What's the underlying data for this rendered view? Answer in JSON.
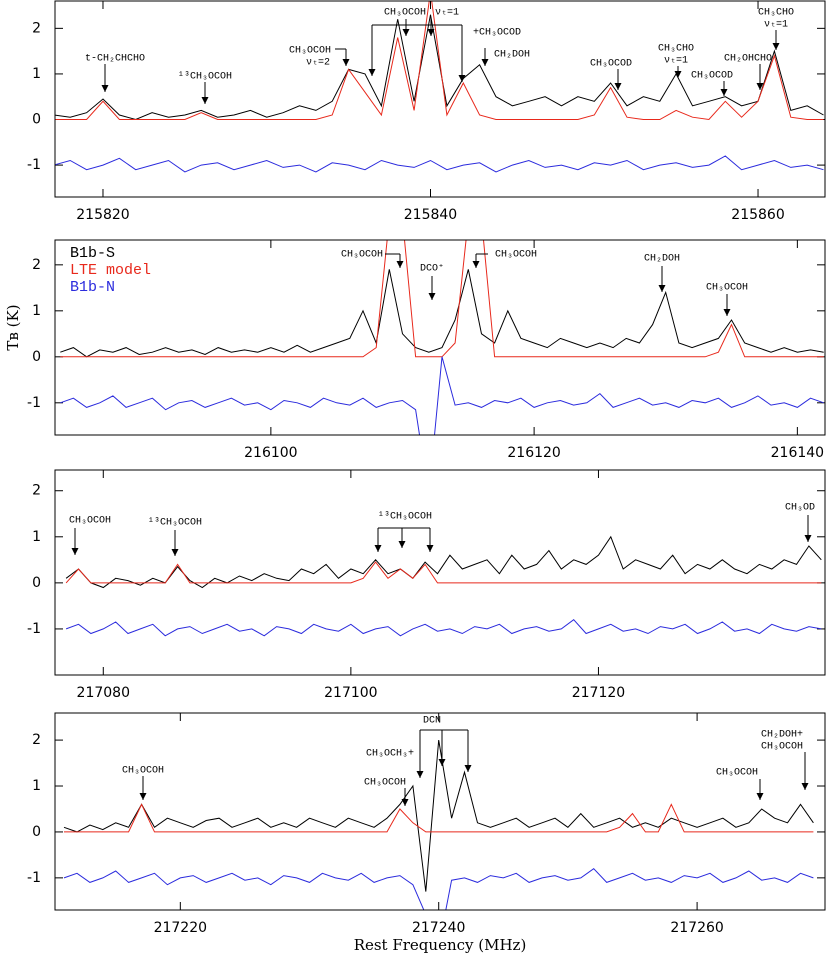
{
  "chart_data": [
    {
      "type": "line",
      "x": [
        215817,
        215818,
        215819,
        215820,
        215821,
        215822,
        215823,
        215824,
        215825,
        215826,
        215827,
        215828,
        215829,
        215830,
        215831,
        215832,
        215833,
        215834,
        215835,
        215836,
        215837,
        215838,
        215839,
        215840,
        215841,
        215842,
        215843,
        215844,
        215845,
        215846,
        215847,
        215848,
        215849,
        215850,
        215851,
        215852,
        215853,
        215854,
        215855,
        215856,
        215857,
        215858,
        215859,
        215860,
        215861,
        215862,
        215863,
        215864
      ],
      "series": [
        {
          "color": "#000000",
          "values": [
            0.1,
            0.05,
            0.15,
            0.45,
            0.1,
            0.0,
            0.15,
            0.05,
            0.1,
            0.2,
            0.05,
            0.1,
            0.2,
            0.05,
            0.15,
            0.3,
            0.2,
            0.4,
            1.1,
            1.0,
            0.3,
            2.2,
            0.4,
            2.3,
            0.3,
            0.9,
            1.2,
            0.5,
            0.3,
            0.4,
            0.5,
            0.3,
            0.5,
            0.4,
            0.8,
            0.3,
            0.5,
            0.4,
            1.0,
            0.3,
            0.4,
            0.5,
            0.3,
            0.4,
            1.5,
            0.2,
            0.3,
            0.1
          ]
        },
        {
          "color": "#e8291c",
          "values": [
            0,
            0,
            0,
            0.4,
            0,
            0,
            0,
            0,
            0,
            0.15,
            0,
            0,
            0,
            0,
            0,
            0,
            0,
            0.1,
            1.1,
            0.6,
            0.1,
            1.8,
            0.2,
            2.8,
            0.1,
            0.8,
            0.1,
            0,
            0,
            0,
            0,
            0,
            0,
            0.1,
            0.7,
            0.05,
            0,
            0,
            0.2,
            0.05,
            0,
            0.4,
            0.05,
            0.4,
            1.4,
            0.05,
            0,
            0
          ]
        },
        {
          "color": "#2b2bdd",
          "values": [
            -1.0,
            -0.9,
            -1.1,
            -1.0,
            -0.85,
            -1.1,
            -1.0,
            -0.9,
            -1.15,
            -1.0,
            -0.95,
            -1.1,
            -1.0,
            -0.9,
            -1.05,
            -1.0,
            -1.15,
            -0.95,
            -1.0,
            -1.1,
            -0.9,
            -1.0,
            -1.05,
            -0.9,
            -1.1,
            -1.0,
            -0.95,
            -1.15,
            -1.0,
            -0.9,
            -1.05,
            -1.0,
            -1.1,
            -0.95,
            -1.0,
            -0.9,
            -1.1,
            -1.0,
            -0.95,
            -1.05,
            -1.0,
            -0.8,
            -1.1,
            -1.0,
            -0.9,
            -1.05,
            -1.0,
            -1.1
          ]
        }
      ],
      "xlim": [
        215817.07,
        215864.09
      ],
      "xticks": [
        215820,
        215840,
        215860
      ],
      "ylim": [
        -1.7,
        2.6
      ],
      "yticks": [
        -1,
        0,
        1,
        2
      ],
      "annotations": [
        "t-CH₂CHCHO",
        "¹³CH₃OCOH",
        "CH₃OCOH",
        "νₜ=2",
        "CH₃OCOH",
        "νₜ=1",
        "+CH₃OCOD",
        "CH₂DOH",
        "CH₃OCOD",
        "CH₃CHO",
        "νₜ=1",
        "CH₂OHCHO",
        "CH₃OCOD",
        "CH₃CHO",
        "νₜ=1"
      ]
    },
    {
      "type": "line",
      "x": [
        216084,
        216085,
        216086,
        216087,
        216088,
        216089,
        216090,
        216091,
        216092,
        216093,
        216094,
        216095,
        216096,
        216097,
        216098,
        216099,
        216100,
        216101,
        216102,
        216103,
        216104,
        216105,
        216106,
        216107,
        216108,
        216109,
        216110,
        216111,
        216112,
        216113,
        216114,
        216115,
        216116,
        216117,
        216118,
        216119,
        216120,
        216121,
        216122,
        216123,
        216124,
        216125,
        216126,
        216127,
        216128,
        216129,
        216130,
        216131,
        216132,
        216133,
        216134,
        216135,
        216136,
        216137,
        216138,
        216139,
        216140,
        216141,
        216142
      ],
      "series": [
        {
          "name": "B1b-S",
          "color": "#000000",
          "values": [
            0.1,
            0.2,
            0.0,
            0.15,
            0.1,
            0.2,
            0.05,
            0.1,
            0.2,
            0.1,
            0.15,
            0.05,
            0.2,
            0.1,
            0.15,
            0.1,
            0.2,
            0.1,
            0.25,
            0.1,
            0.2,
            0.3,
            0.4,
            1.0,
            0.3,
            1.9,
            0.5,
            0.2,
            0.1,
            0.2,
            0.8,
            1.9,
            0.5,
            0.3,
            1.0,
            0.4,
            0.3,
            0.2,
            0.4,
            0.3,
            0.2,
            0.3,
            0.2,
            0.4,
            0.3,
            0.7,
            1.4,
            0.3,
            0.2,
            0.3,
            0.4,
            0.8,
            0.3,
            0.2,
            0.1,
            0.2,
            0.1,
            0.15,
            0.1
          ]
        },
        {
          "name": "LTE model",
          "color": "#e8291c",
          "values": [
            0,
            0,
            0,
            0,
            0,
            0,
            0,
            0,
            0,
            0,
            0,
            0,
            0,
            0,
            0,
            0,
            0,
            0,
            0,
            0,
            0,
            0,
            0,
            0,
            0.2,
            3.0,
            3.0,
            0,
            0,
            0,
            0.3,
            3.0,
            3.0,
            0,
            0,
            0,
            0,
            0,
            0,
            0,
            0,
            0,
            0,
            0,
            0,
            0,
            0,
            0,
            0,
            0,
            0.1,
            0.7,
            0,
            0,
            0,
            0,
            0,
            0,
            0
          ]
        },
        {
          "name": "B1b-N",
          "color": "#2b2bdd",
          "values": [
            -1.0,
            -0.9,
            -1.1,
            -1.0,
            -0.85,
            -1.1,
            -1.0,
            -0.9,
            -1.15,
            -1.0,
            -0.95,
            -1.1,
            -1.0,
            -0.9,
            -1.05,
            -1.0,
            -1.15,
            -0.95,
            -1.0,
            -1.1,
            -0.9,
            -1.0,
            -1.05,
            -0.9,
            -1.1,
            -1.0,
            -0.95,
            -1.15,
            -3.0,
            0.0,
            -1.05,
            -1.0,
            -1.1,
            -0.95,
            -1.0,
            -0.9,
            -1.1,
            -1.0,
            -0.95,
            -1.05,
            -1.0,
            -0.8,
            -1.1,
            -1.0,
            -0.9,
            -1.05,
            -1.0,
            -1.1,
            -0.95,
            -1.0,
            -0.9,
            -1.1,
            -1.0,
            -0.85,
            -1.05,
            -1.0,
            -1.1,
            -0.9,
            -1.0
          ]
        }
      ],
      "xlim": [
        216083.6,
        216142.1
      ],
      "xticks": [
        216100,
        216120,
        216140
      ],
      "ylim": [
        -1.7,
        2.54
      ],
      "yticks": [
        -1,
        0,
        1,
        2
      ],
      "legend": "upper left",
      "ylabel": "Tʙ (K)",
      "annotations": [
        "CH₃OCOH",
        "DCO⁺",
        "CH₃OCOH",
        "CH₂DOH",
        "CH₃OCOH"
      ]
    },
    {
      "type": "line",
      "x": [
        217077,
        217078,
        217079,
        217080,
        217081,
        217082,
        217083,
        217084,
        217085,
        217086,
        217087,
        217088,
        217089,
        217090,
        217091,
        217092,
        217093,
        217094,
        217095,
        217096,
        217097,
        217098,
        217099,
        217100,
        217101,
        217102,
        217103,
        217104,
        217105,
        217106,
        217107,
        217108,
        217109,
        217110,
        217111,
        217112,
        217113,
        217114,
        217115,
        217116,
        217117,
        217118,
        217119,
        217120,
        217121,
        217122,
        217123,
        217124,
        217125,
        217126,
        217127,
        217128,
        217129,
        217130,
        217131,
        217132,
        217133,
        217134,
        217135,
        217136,
        217137,
        217138
      ],
      "series": [
        {
          "color": "#000000",
          "values": [
            0.1,
            0.3,
            0.0,
            -0.1,
            0.1,
            0.05,
            -0.05,
            0.1,
            0.0,
            0.35,
            0.05,
            -0.1,
            0.1,
            0.0,
            0.15,
            0.05,
            0.2,
            0.1,
            0.05,
            0.3,
            0.2,
            0.4,
            0.1,
            0.3,
            0.2,
            0.5,
            0.2,
            0.3,
            0.1,
            0.45,
            0.2,
            0.6,
            0.3,
            0.4,
            0.5,
            0.2,
            0.6,
            0.3,
            0.4,
            0.7,
            0.3,
            0.5,
            0.4,
            0.6,
            1.0,
            0.3,
            0.5,
            0.4,
            0.3,
            0.6,
            0.2,
            0.4,
            0.3,
            0.5,
            0.3,
            0.2,
            0.4,
            0.3,
            0.5,
            0.4,
            0.8,
            0.5
          ]
        },
        {
          "color": "#e8291c",
          "values": [
            0,
            0.3,
            0,
            0,
            0,
            0,
            0,
            0,
            0,
            0.4,
            0,
            0,
            0,
            0,
            0,
            0,
            0,
            0,
            0,
            0,
            0,
            0,
            0,
            0,
            0.1,
            0.45,
            0.1,
            0.3,
            0.1,
            0.4,
            0,
            0,
            0,
            0,
            0,
            0,
            0,
            0,
            0,
            0,
            0,
            0,
            0,
            0,
            0,
            0,
            0,
            0,
            0,
            0,
            0,
            0,
            0,
            0,
            0,
            0,
            0,
            0,
            0,
            0,
            0,
            0
          ]
        },
        {
          "color": "#2b2bdd",
          "values": [
            -1.0,
            -0.9,
            -1.1,
            -1.0,
            -0.85,
            -1.1,
            -1.0,
            -0.9,
            -1.15,
            -1.0,
            -0.95,
            -1.1,
            -1.0,
            -0.9,
            -1.05,
            -1.0,
            -1.15,
            -0.95,
            -1.0,
            -1.1,
            -0.9,
            -1.0,
            -1.05,
            -0.9,
            -1.1,
            -1.0,
            -0.95,
            -1.15,
            -1.0,
            -0.9,
            -1.05,
            -1.0,
            -1.1,
            -0.95,
            -1.0,
            -0.9,
            -1.1,
            -1.0,
            -0.95,
            -1.05,
            -1.0,
            -0.8,
            -1.1,
            -1.0,
            -0.9,
            -1.05,
            -1.0,
            -1.1,
            -0.95,
            -1.0,
            -0.9,
            -1.1,
            -1.0,
            -0.85,
            -1.05,
            -1.0,
            -1.1,
            -0.9,
            -1.0,
            -1.05,
            -0.95,
            -1.0
          ]
        }
      ],
      "xlim": [
        217076.1,
        217138.3
      ],
      "xticks": [
        217080,
        217100,
        217120
      ],
      "ylim": [
        -2.0,
        2.45
      ],
      "yticks": [
        -1,
        0,
        1,
        2
      ],
      "annotations": [
        "CH₃OCOH",
        "¹³CH₃OCOH",
        "¹³CH₃OCOH",
        "CH₃OD"
      ]
    },
    {
      "type": "line",
      "x": [
        217211,
        217212,
        217213,
        217214,
        217215,
        217216,
        217217,
        217218,
        217219,
        217220,
        217221,
        217222,
        217223,
        217224,
        217225,
        217226,
        217227,
        217228,
        217229,
        217230,
        217231,
        217232,
        217233,
        217234,
        217235,
        217236,
        217237,
        217238,
        217239,
        217240,
        217241,
        217242,
        217243,
        217244,
        217245,
        217246,
        217247,
        217248,
        217249,
        217250,
        217251,
        217252,
        217253,
        217254,
        217255,
        217256,
        217257,
        217258,
        217259,
        217260,
        217261,
        217262,
        217263,
        217264,
        217265,
        217266,
        217267,
        217268,
        217269
      ],
      "series": [
        {
          "color": "#000000",
          "values": [
            0.1,
            0.0,
            0.15,
            0.05,
            0.2,
            0.1,
            0.6,
            0.1,
            0.3,
            0.2,
            0.1,
            0.25,
            0.3,
            0.1,
            0.2,
            0.3,
            0.1,
            0.2,
            0.1,
            0.3,
            0.2,
            0.1,
            0.3,
            0.2,
            0.1,
            0.3,
            0.6,
            1.0,
            -1.3,
            2.0,
            0.3,
            1.3,
            0.2,
            0.1,
            0.2,
            0.3,
            0.1,
            0.2,
            0.3,
            0.1,
            0.4,
            0.1,
            0.2,
            0.3,
            0.1,
            0.2,
            0.1,
            0.3,
            0.2,
            0.1,
            0.2,
            0.3,
            0.1,
            0.2,
            0.5,
            0.3,
            0.2,
            0.6,
            0.2
          ]
        },
        {
          "color": "#e8291c",
          "values": [
            0,
            0,
            0,
            0,
            0,
            0,
            0.6,
            0,
            0,
            0,
            0,
            0,
            0,
            0,
            0,
            0,
            0,
            0,
            0,
            0,
            0,
            0,
            0,
            0,
            0,
            0,
            0.5,
            0.2,
            0,
            0,
            0,
            0,
            0,
            0,
            0,
            0,
            0,
            0,
            0,
            0,
            0,
            0,
            0,
            0.1,
            0.4,
            0,
            0,
            0.6,
            0,
            0,
            0,
            0,
            0,
            0,
            0,
            0,
            0,
            0,
            0
          ]
        },
        {
          "color": "#2b2bdd",
          "values": [
            -1.0,
            -0.9,
            -1.1,
            -1.0,
            -0.85,
            -1.1,
            -1.0,
            -0.9,
            -1.15,
            -1.0,
            -0.95,
            -1.1,
            -1.0,
            -0.9,
            -1.05,
            -1.0,
            -1.15,
            -0.95,
            -1.0,
            -1.1,
            -0.9,
            -1.0,
            -1.05,
            -0.9,
            -1.1,
            -1.0,
            -0.95,
            -1.15,
            -1.8,
            -2.5,
            -1.05,
            -1.0,
            -1.1,
            -0.95,
            -1.0,
            -0.9,
            -1.1,
            -1.0,
            -0.95,
            -1.05,
            -1.0,
            -0.8,
            -1.1,
            -1.0,
            -0.9,
            -1.05,
            -1.0,
            -1.1,
            -0.95,
            -1.0,
            -0.9,
            -1.1,
            -1.0,
            -0.85,
            -1.05,
            -1.0,
            -1.1,
            -0.9,
            -1.0
          ]
        }
      ],
      "xlim": [
        217210.3,
        217269.9
      ],
      "xticks": [
        217220,
        217240,
        217260
      ],
      "ylim": [
        -1.7,
        2.59
      ],
      "yticks": [
        -1,
        0,
        1,
        2
      ],
      "xlabel": "Rest Frequency (MHz)",
      "annotations": [
        "CH₃OCOH",
        "CH₃OCH₃+",
        "CH₃OCOH",
        "DCN",
        "CH₃OCOH",
        "CH₂DOH+",
        "CH₃OCOH"
      ]
    }
  ]
}
